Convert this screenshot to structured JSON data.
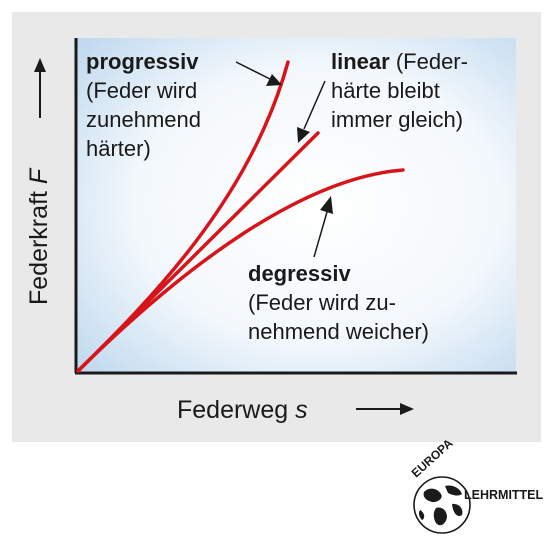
{
  "axes": {
    "x_label": "Federweg",
    "x_symbol": "s",
    "y_label": "Federkraft",
    "y_symbol": "F"
  },
  "curves": [
    {
      "name": "progressiv",
      "description_lines": [
        "(Feder wird",
        "zunehmend",
        "härter)"
      ]
    },
    {
      "name": "linear",
      "description_lines": [
        "(Feder-",
        "härte bleibt",
        "immer gleich)"
      ]
    },
    {
      "name": "degressiv",
      "description_lines": [
        "(Feder wird zu-",
        "nehmend weicher)"
      ]
    }
  ],
  "publisher_logo": {
    "top_text": "EUROPA",
    "right_text": "LEHRMITTEL"
  },
  "colors": {
    "curve": "#d7141a",
    "panel_background": "#e9e9ea",
    "plot_gradient_edge": "#bcd7ee",
    "plot_gradient_center": "#ffffff",
    "axis": "#1a1a1a"
  }
}
